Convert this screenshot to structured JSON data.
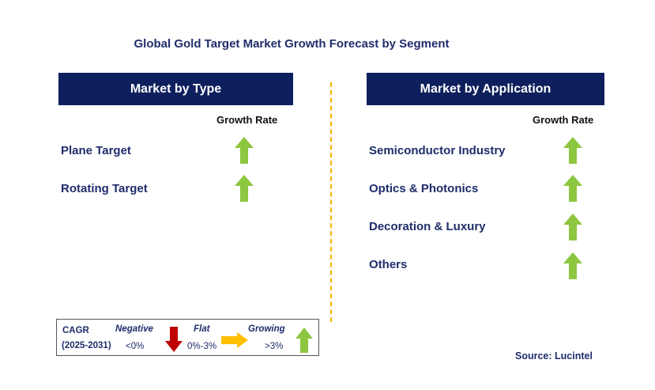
{
  "title": "Global Gold Target Market Growth Forecast by Segment",
  "left_panel": {
    "header": "Market by Type",
    "growth_rate_label": "Growth Rate",
    "rows": [
      {
        "label": "Plane Target",
        "trend": "growing"
      },
      {
        "label": "Rotating Target",
        "trend": "growing"
      }
    ]
  },
  "right_panel": {
    "header": "Market by Application",
    "growth_rate_label": "Growth Rate",
    "rows": [
      {
        "label": "Semiconductor Industry",
        "trend": "growing"
      },
      {
        "label": "Optics & Photonics",
        "trend": "growing"
      },
      {
        "label": "Decoration & Luxury",
        "trend": "growing"
      },
      {
        "label": "Others",
        "trend": "growing"
      }
    ]
  },
  "legend": {
    "cagr_label": "CAGR",
    "period": "(2025-2031)",
    "negative": {
      "label": "Negative",
      "range": "<0%",
      "icon": "down-arrow-icon",
      "color": "#c00000"
    },
    "flat": {
      "label": "Flat",
      "range": "0%-3%",
      "icon": "right-arrow-icon",
      "color": "#ffc000"
    },
    "growing": {
      "label": "Growing",
      "range": ">3%",
      "icon": "up-arrow-icon",
      "color": "#8dc63f"
    }
  },
  "source": "Source: Lucintel",
  "colors": {
    "header_bg": "#0d1f5c",
    "text_navy": "#1f2d6b",
    "divider": "#f5b400",
    "growing": "#8dc63f"
  }
}
